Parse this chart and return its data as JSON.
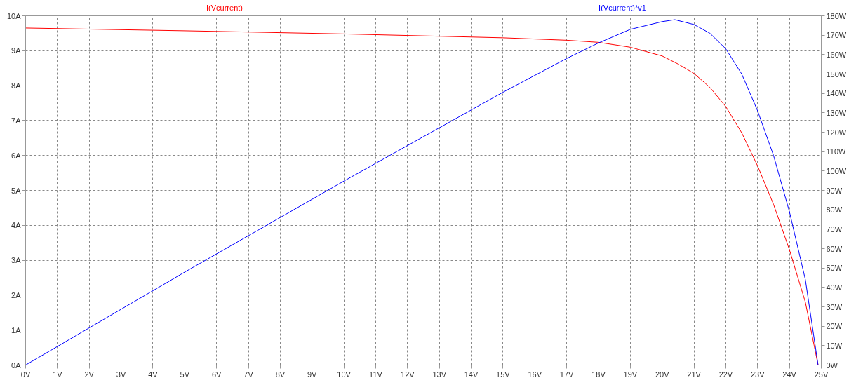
{
  "chart_data": {
    "type": "line",
    "xlim": [
      0,
      25
    ],
    "ylim": [
      0,
      10
    ],
    "y2lim": [
      0,
      180
    ],
    "xticks": [
      {
        "value": 0,
        "label": "0V"
      },
      {
        "value": 1,
        "label": "1V"
      },
      {
        "value": 2,
        "label": "2V"
      },
      {
        "value": 3,
        "label": "3V"
      },
      {
        "value": 4,
        "label": "4V"
      },
      {
        "value": 5,
        "label": "5V"
      },
      {
        "value": 6,
        "label": "6V"
      },
      {
        "value": 7,
        "label": "7V"
      },
      {
        "value": 8,
        "label": "8V"
      },
      {
        "value": 9,
        "label": "9V"
      },
      {
        "value": 10,
        "label": "10V"
      },
      {
        "value": 11,
        "label": "11V"
      },
      {
        "value": 12,
        "label": "12V"
      },
      {
        "value": 13,
        "label": "13V"
      },
      {
        "value": 14,
        "label": "14V"
      },
      {
        "value": 15,
        "label": "15V"
      },
      {
        "value": 16,
        "label": "16V"
      },
      {
        "value": 17,
        "label": "17V"
      },
      {
        "value": 18,
        "label": "18V"
      },
      {
        "value": 19,
        "label": "19V"
      },
      {
        "value": 20,
        "label": "20V"
      },
      {
        "value": 21,
        "label": "21V"
      },
      {
        "value": 22,
        "label": "22V"
      },
      {
        "value": 23,
        "label": "23V"
      },
      {
        "value": 24,
        "label": "24V"
      },
      {
        "value": 25,
        "label": "25V"
      }
    ],
    "yticks": [
      {
        "value": 0,
        "label": "0A"
      },
      {
        "value": 1,
        "label": "1A"
      },
      {
        "value": 2,
        "label": "2A"
      },
      {
        "value": 3,
        "label": "3A"
      },
      {
        "value": 4,
        "label": "4A"
      },
      {
        "value": 5,
        "label": "5A"
      },
      {
        "value": 6,
        "label": "6A"
      },
      {
        "value": 7,
        "label": "7A"
      },
      {
        "value": 8,
        "label": "8A"
      },
      {
        "value": 9,
        "label": "9A"
      },
      {
        "value": 10,
        "label": "10A"
      }
    ],
    "y2ticks": [
      {
        "value": 0,
        "label": "0W"
      },
      {
        "value": 10,
        "label": "10W"
      },
      {
        "value": 20,
        "label": "20W"
      },
      {
        "value": 30,
        "label": "30W"
      },
      {
        "value": 40,
        "label": "40W"
      },
      {
        "value": 50,
        "label": "50W"
      },
      {
        "value": 60,
        "label": "60W"
      },
      {
        "value": 70,
        "label": "70W"
      },
      {
        "value": 80,
        "label": "80W"
      },
      {
        "value": 90,
        "label": "90W"
      },
      {
        "value": 100,
        "label": "100W"
      },
      {
        "value": 110,
        "label": "110W"
      },
      {
        "value": 120,
        "label": "120W"
      },
      {
        "value": 130,
        "label": "130W"
      },
      {
        "value": 140,
        "label": "140W"
      },
      {
        "value": 150,
        "label": "150W"
      },
      {
        "value": 160,
        "label": "160W"
      },
      {
        "value": 170,
        "label": "170W"
      },
      {
        "value": 180,
        "label": "180W"
      }
    ],
    "grid": true,
    "line_style": "solid",
    "series": [
      {
        "name": "I(Vcurrent)",
        "color": "#ff0000",
        "x": [
          0,
          5,
          10,
          15,
          17,
          18,
          19,
          20,
          20.5,
          21,
          21.5,
          22,
          22.5,
          23,
          23.5,
          24,
          24.5,
          24.9
        ],
        "values": [
          9.65,
          9.57,
          9.48,
          9.37,
          9.3,
          9.24,
          9.1,
          8.85,
          8.62,
          8.35,
          7.95,
          7.4,
          6.65,
          5.7,
          4.6,
          3.3,
          1.8,
          0
        ]
      },
      {
        "name": "I(Vcurrent)*v1",
        "color": "#0000ff",
        "axis": "y2",
        "x": [
          0,
          5,
          10,
          15,
          17,
          18,
          19,
          20,
          20.4,
          21,
          21.5,
          22,
          22.5,
          23,
          23.5,
          24,
          24.5,
          24.9
        ],
        "values": [
          0,
          47.9,
          94.8,
          140.6,
          158,
          166,
          173,
          177,
          178,
          175.5,
          171,
          163,
          150,
          131,
          108,
          79,
          44,
          0
        ]
      }
    ]
  }
}
